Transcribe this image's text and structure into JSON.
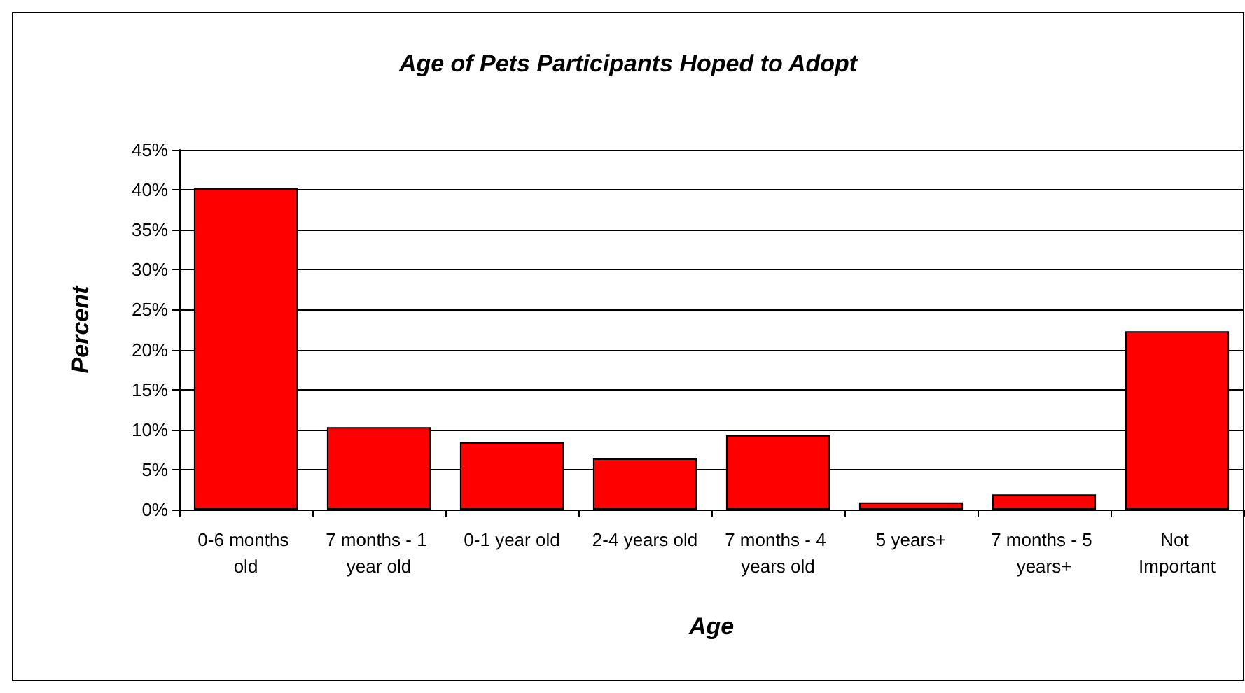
{
  "chart_data": {
    "type": "bar",
    "title": "Age of Pets Participants Hoped to Adopt",
    "xlabel": "Age",
    "ylabel": "Percent",
    "categories": [
      "0-6 months old",
      "7 months - 1 year old",
      "0-1 year old",
      "2-4 years old",
      "7 months - 4 years old",
      "5 years+",
      "7 months - 5 years+",
      "Not Important"
    ],
    "values": [
      40.2,
      10.3,
      8.4,
      6.4,
      9.3,
      0.9,
      1.9,
      22.3
    ],
    "color": "#ff0000",
    "ylim": [
      0,
      45
    ],
    "yticks": [
      {
        "value": 0,
        "label": "0%"
      },
      {
        "value": 5,
        "label": "5%"
      },
      {
        "value": 10,
        "label": "10%"
      },
      {
        "value": 15,
        "label": "15%"
      },
      {
        "value": 20,
        "label": "20%"
      },
      {
        "value": 25,
        "label": "25%"
      },
      {
        "value": 30,
        "label": "30%"
      },
      {
        "value": 35,
        "label": "35%"
      },
      {
        "value": 40,
        "label": "40%"
      },
      {
        "value": 45,
        "label": "45%"
      }
    ],
    "grid": "y"
  }
}
